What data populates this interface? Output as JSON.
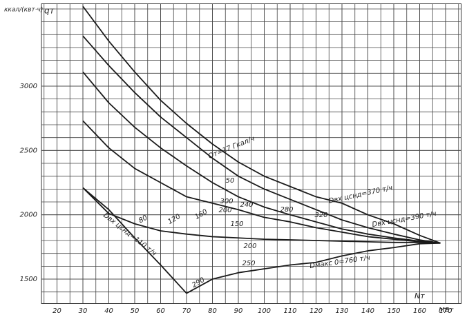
{
  "chart_data": {
    "type": "line",
    "y_label": "ккал/(квт·ч)",
    "y_symbol": "qт",
    "x_symbol": "Nт",
    "x_unit": "МВт",
    "x": [
      30,
      40,
      50,
      60,
      70,
      80,
      90,
      100,
      110,
      120,
      130,
      140,
      150,
      160,
      168
    ],
    "series": [
      {
        "color": "#1a1a1a",
        "values": [
          3620,
          3350,
          3110,
          2890,
          2710,
          2550,
          2410,
          2300,
          2220,
          2140,
          2090,
          2000,
          1930,
          1840,
          1780
        ]
      },
      {
        "color": "#1a1a1a",
        "values": [
          3390,
          3160,
          2950,
          2760,
          2600,
          2440,
          2300,
          2200,
          2120,
          2040,
          1960,
          1900,
          1850,
          1805,
          1780
        ]
      },
      {
        "color": "#1a1a1a",
        "values": [
          3110,
          2870,
          2680,
          2520,
          2380,
          2250,
          2140,
          2060,
          2000,
          1945,
          1890,
          1850,
          1820,
          1795,
          1780
        ]
      },
      {
        "color": "#1a1a1a",
        "values": [
          2730,
          2520,
          2360,
          2250,
          2140,
          2090,
          2040,
          1980,
          1945,
          1900,
          1865,
          1830,
          1810,
          1790,
          1780
        ]
      },
      {
        "color": "#1a1a1a",
        "values": [
          2210,
          2010,
          1930,
          1875,
          1850,
          1830,
          1820,
          1810,
          1805,
          1800,
          1795,
          1790,
          1785,
          1785,
          1780
        ]
      },
      {
        "color": "#1a1a1a",
        "values": [
          2210,
          2040,
          1820,
          1610,
          1390,
          1500,
          1550,
          1580,
          1610,
          1630,
          1680,
          1720,
          1745,
          1775,
          1780
        ]
      }
    ],
    "annotations": [
      "Qт=17 Гкал/ч",
      "50",
      "80",
      "120",
      "160",
      "300",
      "240",
      "200",
      "280",
      "320",
      "150",
      "200",
      "250",
      "290",
      "Dвх цснд=370 т/ч",
      "Dвх цснд=390 т/ч",
      "Dмакс 0=760 т/ч",
      "Dвх цснд=110 т/ч"
    ],
    "xlim": [
      14,
      176
    ],
    "ylim": [
      1310,
      3640
    ],
    "xticks": [
      20,
      30,
      40,
      50,
      60,
      70,
      80,
      90,
      100,
      110,
      120,
      130,
      140,
      150,
      160,
      170
    ],
    "yticks": [
      1500,
      2000,
      2500,
      3000
    ],
    "grid": true
  }
}
